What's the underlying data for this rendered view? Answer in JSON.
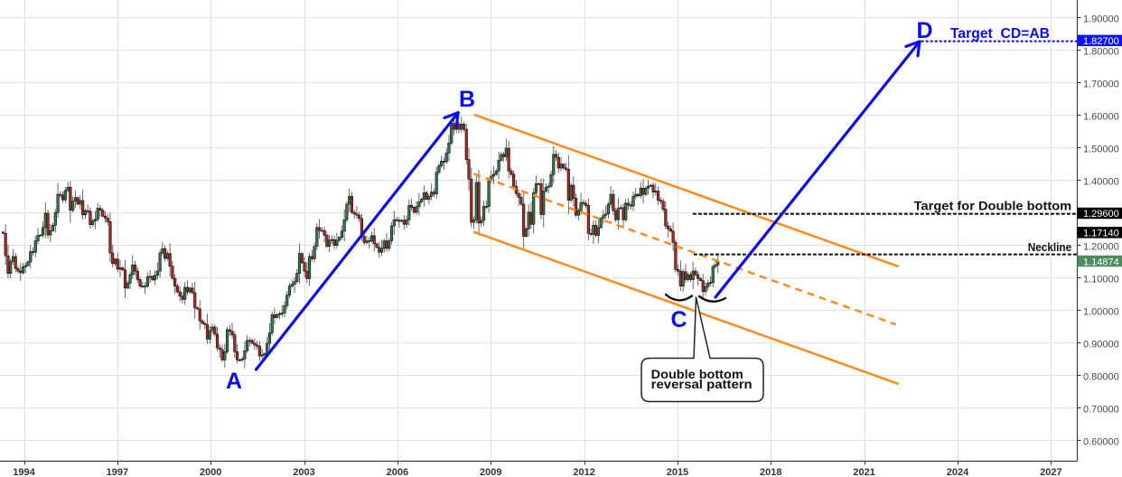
{
  "colors": {
    "annotation_blue": "#0b0bf2",
    "channel_orange": "#ff8a1c",
    "level_black": "#111111",
    "candle_up": "#2e7b4f",
    "candle_down": "#b5231c",
    "candle_border": "#1c1c1c",
    "wick": "#555555",
    "grid": "#e1e1e1",
    "axis": "#3a3a3a",
    "label_text": "#ffffff"
  },
  "chart_data": {
    "type": "candlestick",
    "title": "",
    "xlabel": "",
    "ylabel": "",
    "grid": true,
    "legend": null,
    "x_axis": {
      "ticks": [
        "1994",
        "1997",
        "2000",
        "2003",
        "2006",
        "2009",
        "2012",
        "2015",
        "2018",
        "2021",
        "2024",
        "2027"
      ],
      "range": [
        1993.2,
        2028.0
      ]
    },
    "y_axis": {
      "side": "right",
      "ticks": [
        "0.60000",
        "0.70000",
        "0.80000",
        "0.90000",
        "1.00000",
        "1.10000",
        "1.20000",
        "1.30000",
        "1.40000",
        "1.50000",
        "1.60000",
        "1.70000",
        "1.80000",
        "1.90000"
      ],
      "range": [
        0.55,
        1.96
      ]
    },
    "last_price": 1.14874,
    "candles": {
      "start_year": 1993.33,
      "end_year": 2016.3,
      "first_open": 1.24,
      "closes": [
        1.236,
        1.167,
        1.113,
        1.15,
        1.165,
        1.128,
        1.12,
        1.115,
        1.133,
        1.137,
        1.148,
        1.18,
        1.178,
        1.213,
        1.23,
        1.231,
        1.254,
        1.298,
        1.231,
        1.244,
        1.261,
        1.3,
        1.356,
        1.354,
        1.339,
        1.368,
        1.378,
        1.307,
        1.335,
        1.346,
        1.326,
        1.337,
        1.293,
        1.306,
        1.304,
        1.263,
        1.274,
        1.279,
        1.313,
        1.307,
        1.289,
        1.283,
        1.272,
        1.176,
        1.143,
        1.157,
        1.126,
        1.13,
        1.124,
        1.068,
        1.083,
        1.109,
        1.139,
        1.12,
        1.094,
        1.074,
        1.074,
        1.074,
        1.102,
        1.104,
        1.093,
        1.107,
        1.12,
        1.176,
        1.189,
        1.159,
        1.174,
        1.135,
        1.098,
        1.074,
        1.056,
        1.043,
        1.033,
        1.07,
        1.056,
        1.068,
        1.054,
        1.007,
        1.004,
        0.967,
        0.959,
        0.956,
        0.911,
        0.937,
        0.948,
        0.926,
        0.884,
        0.879,
        0.847,
        0.872,
        0.94,
        0.935,
        0.924,
        0.872,
        0.847,
        0.847,
        0.85,
        0.875,
        0.907,
        0.907,
        0.898,
        0.893,
        0.889,
        0.859,
        0.862,
        0.867,
        0.898,
        0.93,
        0.986,
        0.977,
        0.986,
        0.989,
        0.991,
        1.014,
        1.046,
        1.074,
        1.079,
        1.088,
        1.113,
        1.174,
        1.146,
        1.12,
        1.097,
        1.165,
        1.158,
        1.196,
        1.254,
        1.245,
        1.245,
        1.23,
        1.196,
        1.215,
        1.217,
        1.199,
        1.215,
        1.224,
        1.243,
        1.278,
        1.326,
        1.35,
        1.301,
        1.296,
        1.292,
        1.282,
        1.227,
        1.208,
        1.213,
        1.213,
        1.229,
        1.204,
        1.193,
        1.178,
        1.19,
        1.213,
        1.19,
        1.213,
        1.259,
        1.278,
        1.276,
        1.273,
        1.276,
        1.264,
        1.278,
        1.322,
        1.316,
        1.301,
        1.318,
        1.333,
        1.341,
        1.361,
        1.341,
        1.35,
        1.363,
        1.357,
        1.424,
        1.444,
        1.458,
        1.456,
        1.483,
        1.514,
        1.574,
        1.556,
        1.572,
        1.556,
        1.572,
        1.556,
        1.463,
        1.403,
        1.27,
        1.278,
        1.393,
        1.268,
        1.276,
        1.319,
        1.319,
        1.398,
        1.412,
        1.418,
        1.428,
        1.461,
        1.479,
        1.472,
        1.498,
        1.428,
        1.418,
        1.381,
        1.359,
        1.347,
        1.326,
        1.227,
        1.25,
        1.301,
        1.264,
        1.361,
        1.389,
        1.389,
        1.294,
        1.366,
        1.378,
        1.381,
        1.417,
        1.479,
        1.47,
        1.437,
        1.449,
        1.437,
        1.433,
        1.338,
        1.384,
        1.344,
        1.292,
        1.306,
        1.331,
        1.328,
        1.322,
        1.236,
        1.233,
        1.261,
        1.23,
        1.254,
        1.282,
        1.292,
        1.296,
        1.326,
        1.356,
        1.306,
        1.278,
        1.313,
        1.315,
        1.278,
        1.329,
        1.323,
        1.32,
        1.35,
        1.356,
        1.352,
        1.375,
        1.356,
        1.375,
        1.381,
        1.384,
        1.363,
        1.366,
        1.338,
        1.335,
        1.31,
        1.259,
        1.25,
        1.243,
        1.208,
        1.125,
        1.12,
        1.074,
        1.118,
        1.094,
        1.109,
        1.094,
        1.12,
        1.109,
        1.097,
        1.091,
        1.057,
        1.072,
        1.083,
        1.085,
        1.134,
        1.139,
        1.14874
      ]
    },
    "annotations": {
      "points": [
        {
          "label": "A",
          "year": 2001.4,
          "price": 0.83
        },
        {
          "label": "B",
          "year": 2008.5,
          "price": 1.6
        },
        {
          "label": "C",
          "year": 2015.9,
          "price": 1.05
        },
        {
          "label": "D",
          "year": 2022.8,
          "price": 1.827
        }
      ],
      "arrows": [
        {
          "name": "A-B",
          "from": [
            2001.46,
            0.8175
          ],
          "to": [
            2007.95,
            1.607
          ]
        },
        {
          "name": "C-D",
          "from": [
            2016.22,
            1.0397
          ],
          "to": [
            2022.78,
            1.826
          ]
        }
      ],
      "channel": {
        "upper": {
          "from": [
            2008.47,
            1.601
          ],
          "to": [
            2022.11,
            1.134
          ],
          "style": "solid"
        },
        "median": {
          "from": [
            2008.45,
            1.419
          ],
          "to": [
            2022.02,
            0.956
          ],
          "style": "dashed"
        },
        "lower": {
          "from": [
            2008.45,
            1.241
          ],
          "to": [
            2022.11,
            0.773
          ],
          "style": "solid"
        }
      },
      "levels": [
        {
          "label": "Target  CD=AB",
          "price": 1.827,
          "from_year": 2022.83,
          "style": "dotted",
          "color": "blue"
        },
        {
          "label": "Target for Double bottom",
          "price": 1.296,
          "from_year": 2015.49,
          "style": "dashed",
          "color": "black"
        },
        {
          "label": "Neckline",
          "price": 1.1714,
          "from_year": 2015.52,
          "style": "dashed",
          "color": "black"
        }
      ],
      "callout": {
        "lines": [
          "Double bottom",
          "reversal pattern"
        ]
      },
      "price_labels": [
        {
          "text": "1.82700",
          "value": 1.827,
          "bg": "#1010ff"
        },
        {
          "text": "1.29600",
          "value": 1.296,
          "bg": "#000000"
        },
        {
          "text": "1.17140",
          "value": 1.1714,
          "bg": "#000000"
        },
        {
          "text": "1.14874",
          "value": 1.14874,
          "bg": "#4c8c5e"
        }
      ]
    }
  }
}
